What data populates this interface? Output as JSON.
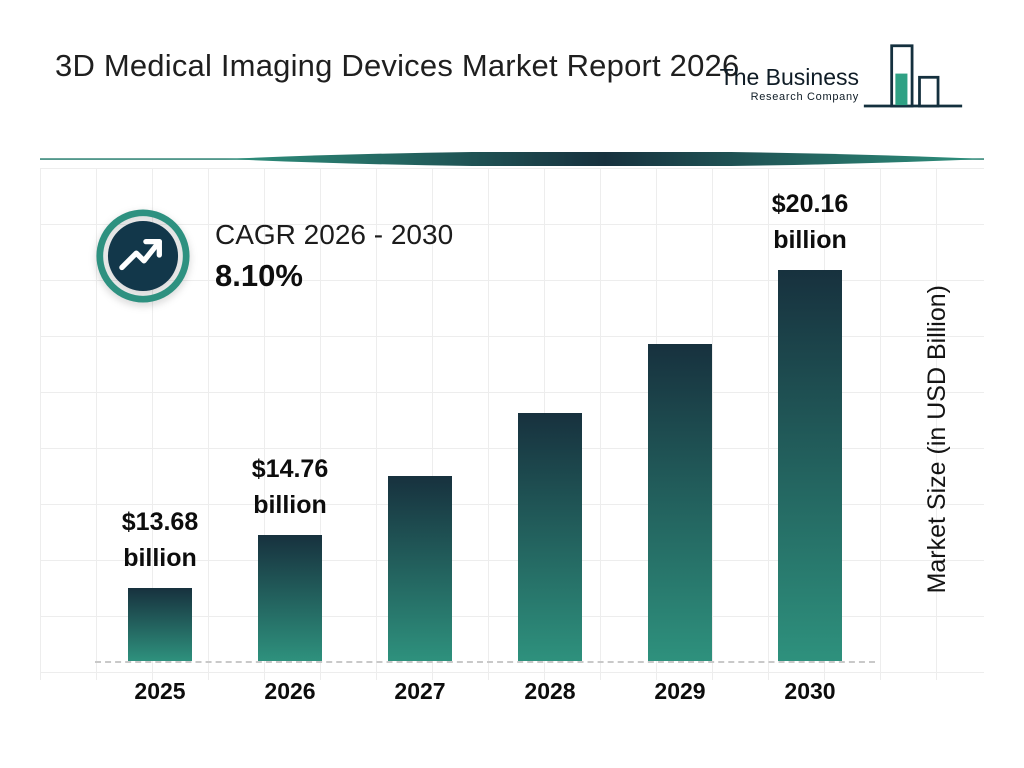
{
  "header": {
    "title": "3D Medical Imaging Devices Market Report 2026",
    "logo": {
      "line1": "The Business",
      "line2": "Research Company",
      "icon": "bar-chart-logo-icon"
    }
  },
  "cagr": {
    "icon": "trending-up-icon",
    "label": "CAGR 2026 - 2030",
    "value": "8.10%"
  },
  "chart_data": {
    "type": "bar",
    "title": "3D Medical Imaging Devices Market Report 2026",
    "categories": [
      "2025",
      "2026",
      "2027",
      "2028",
      "2029",
      "2030"
    ],
    "values": [
      13.68,
      14.76,
      15.96,
      17.25,
      18.65,
      20.16
    ],
    "bar_labels": [
      {
        "amount": "$13.68",
        "unit": "billion"
      },
      {
        "amount": "$14.76",
        "unit": "billion"
      },
      null,
      null,
      null,
      {
        "amount": "$20.16",
        "unit": "billion"
      }
    ],
    "xlabel": "",
    "ylabel": "Market Size (in USD Billion)",
    "axis_baseline": 12.2,
    "ymax": 20.16,
    "grid": true,
    "legend": false,
    "bar_color_top": "#17313e",
    "bar_color_bottom": "#2e917d"
  },
  "colors": {
    "accent_teal": "#2e917d",
    "dark_navy": "#17313e",
    "grid_line": "#ededed",
    "dashed_axis": "#c9c9c9"
  }
}
